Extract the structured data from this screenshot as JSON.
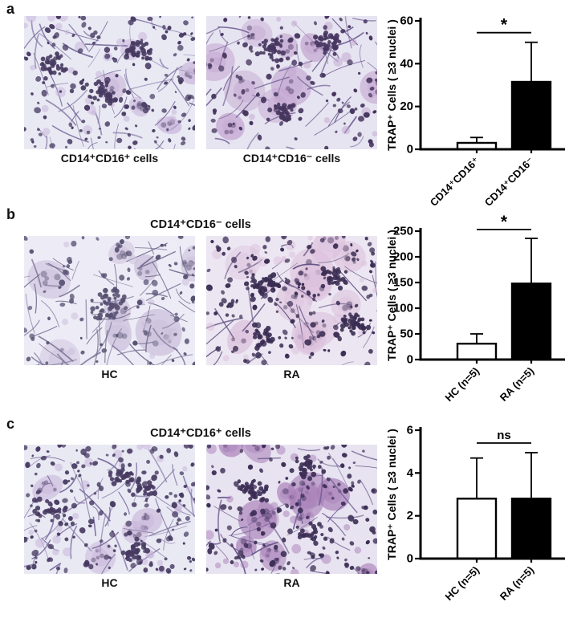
{
  "figure": {
    "panels": [
      {
        "label": "a",
        "title": "",
        "images": [
          {
            "caption": "CD14⁺CD16⁺ cells",
            "style": {
              "seed": 11,
              "bg": "#e9e9f4",
              "dotColor": "#473a61",
              "dots": 150,
              "spindleColor": "#77699a",
              "spindles": 55,
              "blobColor": "#c6b2d8",
              "blobs": 5,
              "blobR": [
                12,
                22
              ],
              "clusters": 3
            }
          },
          {
            "caption": "CD14⁺CD16⁻ cells",
            "style": {
              "seed": 22,
              "bg": "#e7e4f1",
              "dotColor": "#45355e",
              "dots": 110,
              "spindleColor": "#6f5f92",
              "spindles": 45,
              "blobColor": "#c2a3cf",
              "blobs": 9,
              "blobR": [
                16,
                28
              ],
              "clusters": 3
            }
          }
        ]
      },
      {
        "label": "b",
        "title": "CD14⁺CD16⁻ cells",
        "images": [
          {
            "caption": "HC",
            "style": {
              "seed": 33,
              "bg": "#edecf6",
              "dotColor": "#565071",
              "dots": 80,
              "spindleColor": "#6f688c",
              "spindles": 70,
              "blobColor": "#c9bcd9",
              "blobs": 8,
              "blobR": [
                16,
                30
              ],
              "clusters": 2
            }
          },
          {
            "caption": "RA",
            "style": {
              "seed": 44,
              "bg": "#ece6f2",
              "dotColor": "#3a2c52",
              "dots": 150,
              "spindleColor": "#5f4e7e",
              "spindles": 35,
              "blobColor": "#dcc0dc",
              "blobs": 11,
              "blobR": [
                18,
                32
              ],
              "clusters": 4
            }
          }
        ]
      },
      {
        "label": "c",
        "title": "CD14⁺CD16⁺ cells",
        "images": [
          {
            "caption": "HC",
            "style": {
              "seed": 55,
              "bg": "#e9e9f4",
              "dotColor": "#473a61",
              "dots": 170,
              "spindleColor": "#77699a",
              "spindles": 60,
              "blobColor": "#c6b2d8",
              "blobs": 4,
              "blobR": [
                12,
                22
              ],
              "clusters": 4
            }
          },
          {
            "caption": "RA",
            "style": {
              "seed": 66,
              "bg": "#e8e3f0",
              "dotColor": "#3c2e55",
              "dots": 140,
              "spindleColor": "#64538a",
              "spindles": 40,
              "blobColor": "#a87fb8",
              "blobs": 12,
              "blobR": [
                12,
                24
              ],
              "clusters": 3
            }
          }
        ]
      }
    ]
  },
  "chart_data": [
    {
      "panel": "a",
      "type": "bar",
      "categories": [
        "CD14⁺CD16⁺",
        "CD14⁺CD16⁻"
      ],
      "values": [
        3,
        31.5
      ],
      "error_up": [
        2.5,
        18.5
      ],
      "bar_fills": [
        "#ffffff",
        "#000000"
      ],
      "ylabel": "TRAP⁺ Cells ( ≥3 nuclei )",
      "xlabel": "",
      "ylim": [
        0,
        60
      ],
      "yticks": [
        0,
        20,
        40,
        60
      ],
      "significance": "*",
      "grid": false,
      "legend": "none"
    },
    {
      "panel": "b",
      "type": "bar",
      "categories": [
        "HC (n=5)",
        "RA (n=5)"
      ],
      "values": [
        31,
        148
      ],
      "error_up": [
        19,
        88
      ],
      "bar_fills": [
        "#ffffff",
        "#000000"
      ],
      "ylabel": "TRAP⁺ Cells ( ≥3 nuclei )",
      "xlabel": "",
      "ylim": [
        0,
        250
      ],
      "yticks": [
        0,
        50,
        100,
        150,
        200,
        250
      ],
      "significance": "*",
      "grid": false,
      "legend": "none"
    },
    {
      "panel": "c",
      "type": "bar",
      "categories": [
        "HC (n=5)",
        "RA (n=5)"
      ],
      "values": [
        2.8,
        2.8
      ],
      "error_up": [
        1.9,
        2.15
      ],
      "bar_fills": [
        "#ffffff",
        "#000000"
      ],
      "ylabel": "TRAP⁺ Cells ( ≥3 nuclei )",
      "xlabel": "",
      "ylim": [
        0,
        6
      ],
      "yticks": [
        0,
        2,
        4,
        6
      ],
      "significance": "ns",
      "grid": false,
      "legend": "none"
    }
  ]
}
